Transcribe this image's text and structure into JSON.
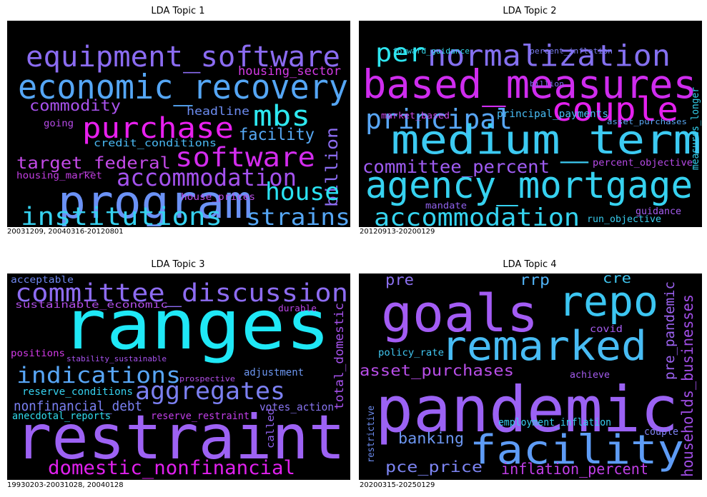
{
  "chart_data": [
    {
      "type": "wordcloud",
      "title": "LDA Topic 1",
      "caption": "20031209, 20040316-20120801",
      "words": [
        {
          "text": "equipment_software",
          "color": "#8b6cf2"
        },
        {
          "text": "economic_recovery",
          "color": "#55a6f5"
        },
        {
          "text": "housing_sector",
          "color": "#d43ae6"
        },
        {
          "text": "commodity",
          "color": "#a952ee"
        },
        {
          "text": "mbs",
          "color": "#2ee8f0"
        },
        {
          "text": "purchase",
          "color": "#e820ee"
        },
        {
          "text": "headline",
          "color": "#6c8cf0"
        },
        {
          "text": "going",
          "color": "#b64ae6"
        },
        {
          "text": "facility",
          "color": "#56a8f4"
        },
        {
          "text": "credit_conditions",
          "color": "#4ab8f2"
        },
        {
          "text": "billion",
          "color": "#8c6cf0"
        },
        {
          "text": "software",
          "color": "#d32cee"
        },
        {
          "text": "target_federal",
          "color": "#c44ae8"
        },
        {
          "text": "housing_market",
          "color": "#c23ee2"
        },
        {
          "text": "accommodation",
          "color": "#a452ee"
        },
        {
          "text": "program",
          "color": "#6b92f6"
        },
        {
          "text": "house",
          "color": "#2ae2f2"
        },
        {
          "text": "house_prices",
          "color": "#b84ee8"
        },
        {
          "text": "institutions",
          "color": "#36d2f0"
        },
        {
          "text": "strains",
          "color": "#55a6f4"
        }
      ]
    },
    {
      "type": "wordcloud",
      "title": "LDA Topic 2",
      "caption": "20120913-20200129",
      "words": [
        {
          "text": "per",
          "color": "#2ee6f0"
        },
        {
          "text": "normalization",
          "color": "#8470f0"
        },
        {
          "text": "forward_guidance",
          "color": "#34d8ee"
        },
        {
          "text": "percent_inflation",
          "color": "#7b7cf2"
        },
        {
          "text": "based_measures",
          "color": "#cf2cee"
        },
        {
          "text": "billion",
          "color": "#8070f0"
        },
        {
          "text": "principal",
          "color": "#58a6f6"
        },
        {
          "text": "couple",
          "color": "#e420ee"
        },
        {
          "text": "measures_longer",
          "color": "#33d2ee"
        },
        {
          "text": "market_based",
          "color": "#c94ae8"
        },
        {
          "text": "principal_payments",
          "color": "#48bcf4"
        },
        {
          "text": "asset_purchases",
          "color": "#5aa8f4"
        },
        {
          "text": "medium_term",
          "color": "#3ccaf2"
        },
        {
          "text": "committee_percent",
          "color": "#9f5cf2"
        },
        {
          "text": "percent_objective",
          "color": "#b64ae6"
        },
        {
          "text": "agency_mortgage",
          "color": "#36d2f0"
        },
        {
          "text": "mandate",
          "color": "#9062ec"
        },
        {
          "text": "guidance",
          "color": "#a45cee"
        },
        {
          "text": "accommodation",
          "color": "#35d4f0"
        },
        {
          "text": "run_objective",
          "color": "#38ccee"
        }
      ]
    },
    {
      "type": "wordcloud",
      "title": "LDA Topic 3",
      "caption": "19930203-20031028, 20040128",
      "words": [
        {
          "text": "acceptable",
          "color": "#7088f0"
        },
        {
          "text": "committee_discussion",
          "color": "#8d6cf2"
        },
        {
          "text": "sustainable_economic",
          "color": "#b04ee8"
        },
        {
          "text": "ranges",
          "color": "#1fe8f6"
        },
        {
          "text": "durable",
          "color": "#b844e6"
        },
        {
          "text": "total_domestic",
          "color": "#a752ee"
        },
        {
          "text": "positions",
          "color": "#d23ae6"
        },
        {
          "text": "stability_sustainable",
          "color": "#a752ee"
        },
        {
          "text": "indications",
          "color": "#58a6f6"
        },
        {
          "text": "prospective",
          "color": "#b24ee8"
        },
        {
          "text": "adjustment",
          "color": "#6c96f0"
        },
        {
          "text": "aggregates",
          "color": "#7c80f2"
        },
        {
          "text": "reserve_conditions",
          "color": "#36d2f0"
        },
        {
          "text": "nonfinancial_debt",
          "color": "#7a80f2"
        },
        {
          "text": "votes_action",
          "color": "#8874f0"
        },
        {
          "text": "anecdotal_reports",
          "color": "#30dcee"
        },
        {
          "text": "reserve_restraint",
          "color": "#c03ee6"
        },
        {
          "text": "called",
          "color": "#9062ec"
        },
        {
          "text": "restraint",
          "color": "#9d62f4"
        },
        {
          "text": "domestic_nonfinancial",
          "color": "#e020ee"
        }
      ]
    },
    {
      "type": "wordcloud",
      "title": "LDA Topic 4",
      "caption": "20200315-20250129",
      "words": [
        {
          "text": "pre",
          "color": "#8c70f0"
        },
        {
          "text": "rrp",
          "color": "#50b2f4"
        },
        {
          "text": "cre",
          "color": "#40c8f2"
        },
        {
          "text": "goals",
          "color": "#a35cf4"
        },
        {
          "text": "repo",
          "color": "#3cc6f2"
        },
        {
          "text": "pre_pandemic",
          "color": "#9c62f0"
        },
        {
          "text": "households_businesses",
          "color": "#a24ee8"
        },
        {
          "text": "covid",
          "color": "#a65cee"
        },
        {
          "text": "remarked",
          "color": "#48bcf4"
        },
        {
          "text": "policy_rate",
          "color": "#40c6f0"
        },
        {
          "text": "asset_purchases",
          "color": "#b84ee8"
        },
        {
          "text": "achieve",
          "color": "#a45cee"
        },
        {
          "text": "pandemic",
          "color": "#9b62f4"
        },
        {
          "text": "restrictive",
          "color": "#6c8cf0"
        },
        {
          "text": "employment_inflation",
          "color": "#38ccee"
        },
        {
          "text": "banking",
          "color": "#6c96f0"
        },
        {
          "text": "couple",
          "color": "#7c80f0"
        },
        {
          "text": "facility",
          "color": "#5e9cf6"
        },
        {
          "text": "pce_price",
          "color": "#7c84f2"
        },
        {
          "text": "inflation_percent",
          "color": "#c03ee6"
        }
      ]
    }
  ]
}
